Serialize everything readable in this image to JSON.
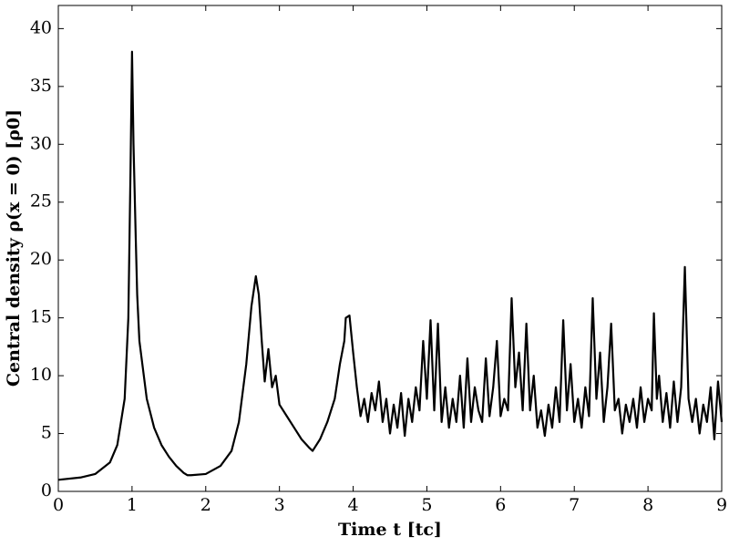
{
  "chart_data": {
    "type": "line",
    "xlabel": "Time t [tc]",
    "ylabel": "Central density ρ(x = 0) [ρ0]",
    "xlim": [
      0,
      9
    ],
    "ylim": [
      0,
      42
    ],
    "xticks": [
      0,
      1,
      2,
      3,
      4,
      5,
      6,
      7,
      8,
      9
    ],
    "yticks": [
      0,
      5,
      10,
      15,
      20,
      25,
      30,
      35,
      40
    ],
    "series": [
      {
        "color": "#000000",
        "x": [
          0,
          0.3,
          0.5,
          0.7,
          0.8,
          0.9,
          0.95,
          0.98,
          1.0,
          1.02,
          1.05,
          1.07,
          1.1,
          1.2,
          1.3,
          1.4,
          1.5,
          1.6,
          1.7,
          1.75,
          1.8,
          2.0,
          2.2,
          2.35,
          2.45,
          2.55,
          2.62,
          2.68,
          2.72,
          2.76,
          2.8,
          2.85,
          2.9,
          2.95,
          3.0,
          3.1,
          3.2,
          3.3,
          3.4,
          3.45,
          3.55,
          3.65,
          3.75,
          3.82,
          3.88,
          3.9,
          3.95,
          4.0,
          4.05,
          4.1,
          4.15,
          4.2,
          4.25,
          4.3,
          4.35,
          4.4,
          4.45,
          4.5,
          4.55,
          4.6,
          4.65,
          4.7,
          4.75,
          4.8,
          4.85,
          4.9,
          4.95,
          5.0,
          5.05,
          5.1,
          5.15,
          5.2,
          5.25,
          5.3,
          5.35,
          5.4,
          5.45,
          5.5,
          5.55,
          5.6,
          5.65,
          5.7,
          5.75,
          5.8,
          5.85,
          5.9,
          5.95,
          6.0,
          6.05,
          6.1,
          6.15,
          6.2,
          6.25,
          6.3,
          6.35,
          6.4,
          6.45,
          6.5,
          6.55,
          6.6,
          6.65,
          6.7,
          6.75,
          6.8,
          6.85,
          6.9,
          6.95,
          7.0,
          7.05,
          7.1,
          7.15,
          7.2,
          7.25,
          7.3,
          7.35,
          7.4,
          7.45,
          7.5,
          7.55,
          7.6,
          7.65,
          7.7,
          7.75,
          7.8,
          7.85,
          7.9,
          7.95,
          8.0,
          8.05,
          8.08,
          8.12,
          8.15,
          8.2,
          8.25,
          8.3,
          8.35,
          8.4,
          8.45,
          8.5,
          8.55,
          8.6,
          8.65,
          8.7,
          8.75,
          8.8,
          8.85,
          8.9,
          8.95,
          9.0
        ],
        "values": [
          1,
          1.2,
          1.5,
          2.5,
          4,
          8,
          15,
          28,
          38,
          30,
          22,
          17,
          13,
          8,
          5.5,
          4,
          3,
          2.2,
          1.6,
          1.4,
          1.4,
          1.5,
          2.2,
          3.5,
          6,
          11,
          16,
          18.6,
          17,
          13,
          9.5,
          12.3,
          9,
          10,
          7.5,
          6.5,
          5.5,
          4.5,
          3.8,
          3.5,
          4.5,
          6,
          8,
          11,
          13,
          15,
          15.2,
          12,
          9,
          6.5,
          8,
          6,
          8.5,
          7,
          9.5,
          6,
          8,
          5,
          7.5,
          5.5,
          8.5,
          4.8,
          8,
          6,
          9,
          7,
          13,
          8,
          14.8,
          7,
          14.5,
          6,
          9,
          5.5,
          8,
          6,
          10,
          5.5,
          11.5,
          6,
          9,
          7,
          6,
          11.5,
          6.5,
          9,
          13,
          6.5,
          8,
          7,
          16.7,
          9,
          12,
          7,
          14.5,
          7,
          10,
          5.5,
          7,
          4.8,
          7.5,
          5.5,
          9,
          6,
          14.8,
          7,
          11,
          6,
          8,
          5.5,
          9,
          6.5,
          16.7,
          8,
          12,
          6,
          9,
          14.5,
          7,
          8,
          5,
          7.5,
          6,
          8,
          5.5,
          9,
          6,
          8,
          7,
          15.4,
          8,
          10,
          6,
          8.5,
          5.5,
          9.5,
          6,
          9,
          19.4,
          8,
          6,
          8,
          5,
          7.5,
          6,
          9,
          4.5,
          9.5,
          6
        ]
      }
    ]
  }
}
